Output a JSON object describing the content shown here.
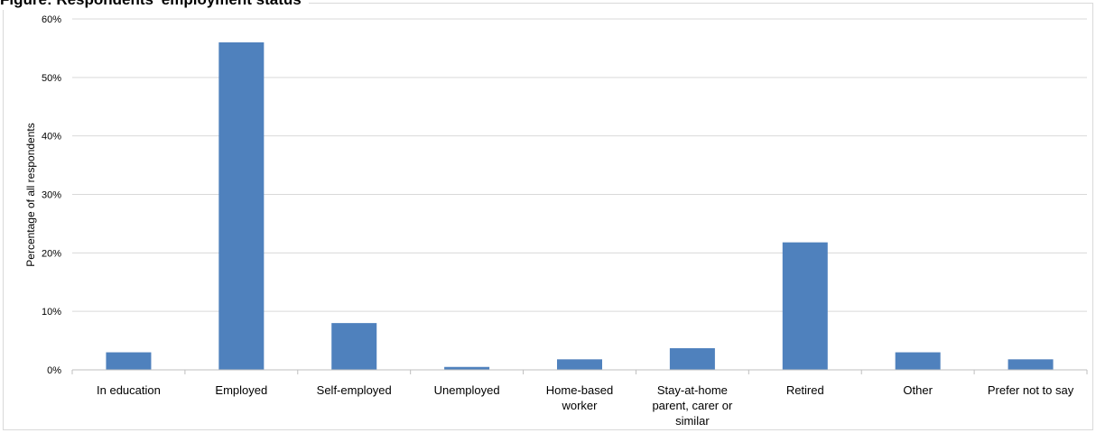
{
  "title": "Figure: Respondents' employment status",
  "chart_data": {
    "type": "bar",
    "title": "",
    "xlabel": "",
    "ylabel": "Percentage of all respondents",
    "categories": [
      [
        "In education"
      ],
      [
        "Employed"
      ],
      [
        "Self-employed"
      ],
      [
        "Unemployed"
      ],
      [
        "Home-based",
        "worker"
      ],
      [
        "Stay-at-home",
        "parent, carer or",
        "similar"
      ],
      [
        "Retired"
      ],
      [
        "Other"
      ],
      [
        "Prefer not to say"
      ]
    ],
    "values": [
      3,
      56,
      8,
      0.5,
      1.8,
      3.7,
      21.8,
      3,
      1.8
    ],
    "ylim": [
      0,
      60
    ],
    "yticks": [
      "0%",
      "10%",
      "20%",
      "30%",
      "40%",
      "50%",
      "60%"
    ],
    "grid": true,
    "bar_color": "#4f81bd",
    "gridline_color": "#d9d9d9"
  }
}
